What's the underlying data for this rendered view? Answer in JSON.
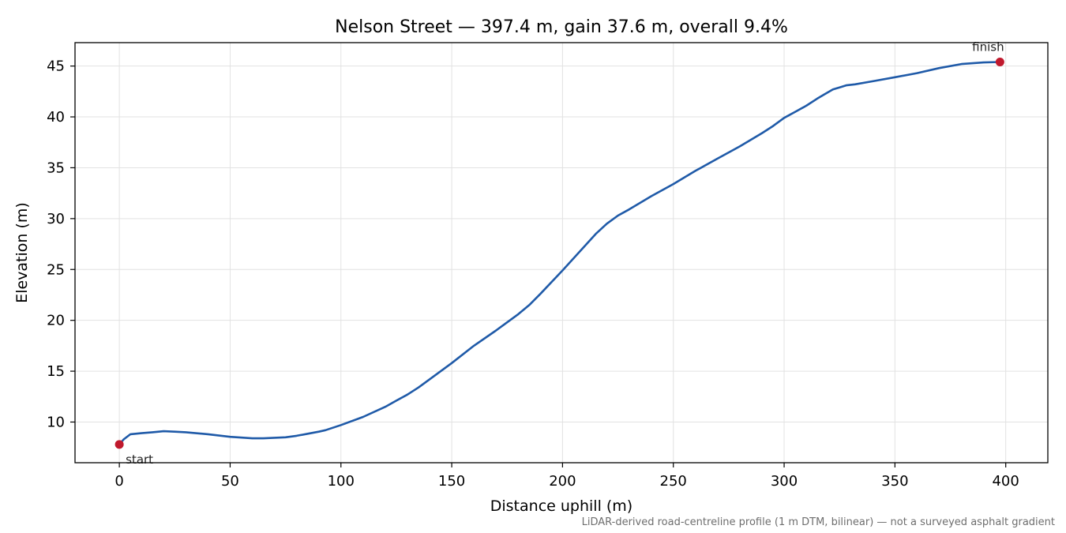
{
  "chart_data": {
    "type": "line",
    "title": "Nelson Street — 397.4 m, gain 37.6 m, overall 9.4%",
    "xlabel": "Distance uphill (m)",
    "ylabel": "Elevation (m)",
    "xlim": [
      -20,
      419
    ],
    "ylim": [
      6.0,
      47.3
    ],
    "xticks": [
      0,
      50,
      100,
      150,
      200,
      250,
      300,
      350,
      400
    ],
    "yticks": [
      10,
      15,
      20,
      25,
      30,
      35,
      40,
      45
    ],
    "grid": true,
    "legend": "none",
    "series": [
      {
        "color": "#1f5aa8",
        "x": [
          0,
          2,
          5,
          10,
          15,
          20,
          25,
          30,
          40,
          50,
          60,
          65,
          70,
          75,
          80,
          85,
          90,
          93,
          100,
          110,
          120,
          125,
          130,
          135,
          140,
          150,
          160,
          170,
          180,
          185,
          190,
          200,
          210,
          215,
          220,
          225,
          230,
          240,
          250,
          260,
          270,
          280,
          290,
          295,
          300,
          305,
          310,
          315,
          318,
          322,
          325,
          328,
          332,
          340,
          350,
          360,
          370,
          380,
          390,
          397.4
        ],
        "y": [
          7.8,
          8.3,
          8.8,
          8.9,
          9.0,
          9.1,
          9.05,
          9.0,
          8.8,
          8.55,
          8.4,
          8.4,
          8.45,
          8.5,
          8.65,
          8.85,
          9.05,
          9.2,
          9.7,
          10.5,
          11.5,
          12.1,
          12.7,
          13.4,
          14.2,
          15.8,
          17.5,
          19.0,
          20.6,
          21.5,
          22.6,
          24.9,
          27.3,
          28.5,
          29.5,
          30.3,
          30.9,
          32.2,
          33.4,
          34.7,
          35.9,
          37.1,
          38.4,
          39.1,
          39.9,
          40.5,
          41.1,
          41.8,
          42.2,
          42.7,
          42.9,
          43.1,
          43.2,
          43.5,
          43.9,
          44.3,
          44.8,
          45.2,
          45.35,
          45.4
        ]
      }
    ],
    "markers": [
      {
        "label": "start",
        "x": 0,
        "y": 7.8,
        "color": "#c0192d"
      },
      {
        "label": "finish",
        "x": 397.4,
        "y": 45.4,
        "color": "#c0192d"
      }
    ],
    "footnote": "LiDAR-derived road-centreline profile (1 m DTM, bilinear) — not a surveyed asphalt gradient"
  }
}
